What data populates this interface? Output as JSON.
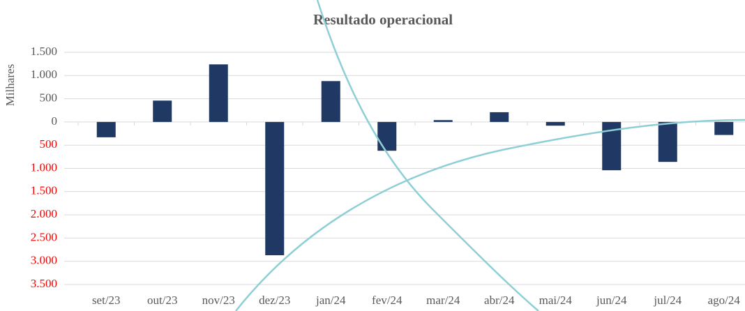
{
  "chart_data": {
    "type": "bar",
    "title": "Resultado operacional",
    "y_label": "Milhares",
    "categories": [
      "set/23",
      "out/23",
      "nov/23",
      "dez/23",
      "jan/24",
      "fev/24",
      "mar/24",
      "abr/24",
      "mai/24",
      "jun/24",
      "jul/24",
      "ago/24"
    ],
    "values": [
      -330,
      460,
      1240,
      -2870,
      880,
      -620,
      40,
      210,
      -80,
      -1040,
      -860,
      -280
    ],
    "color": "#1f3864",
    "ylim": [
      -3500,
      1500
    ],
    "yticks": [
      {
        "value": 1500,
        "label": "1.500"
      },
      {
        "value": 1000,
        "label": "1.000"
      },
      500,
      0,
      {
        "value": -500,
        "label": "500"
      },
      {
        "value": -1000,
        "label": "1.000"
      },
      {
        "value": -1500,
        "label": "1.500"
      },
      {
        "value": -2000,
        "label": "2.000"
      },
      {
        "value": -2500,
        "label": "2.500"
      },
      {
        "value": -3000,
        "label": "3.000"
      },
      {
        "value": -3500,
        "label": "3.500"
      }
    ],
    "negative_tick_color": "#ff0000",
    "grid": true
  }
}
